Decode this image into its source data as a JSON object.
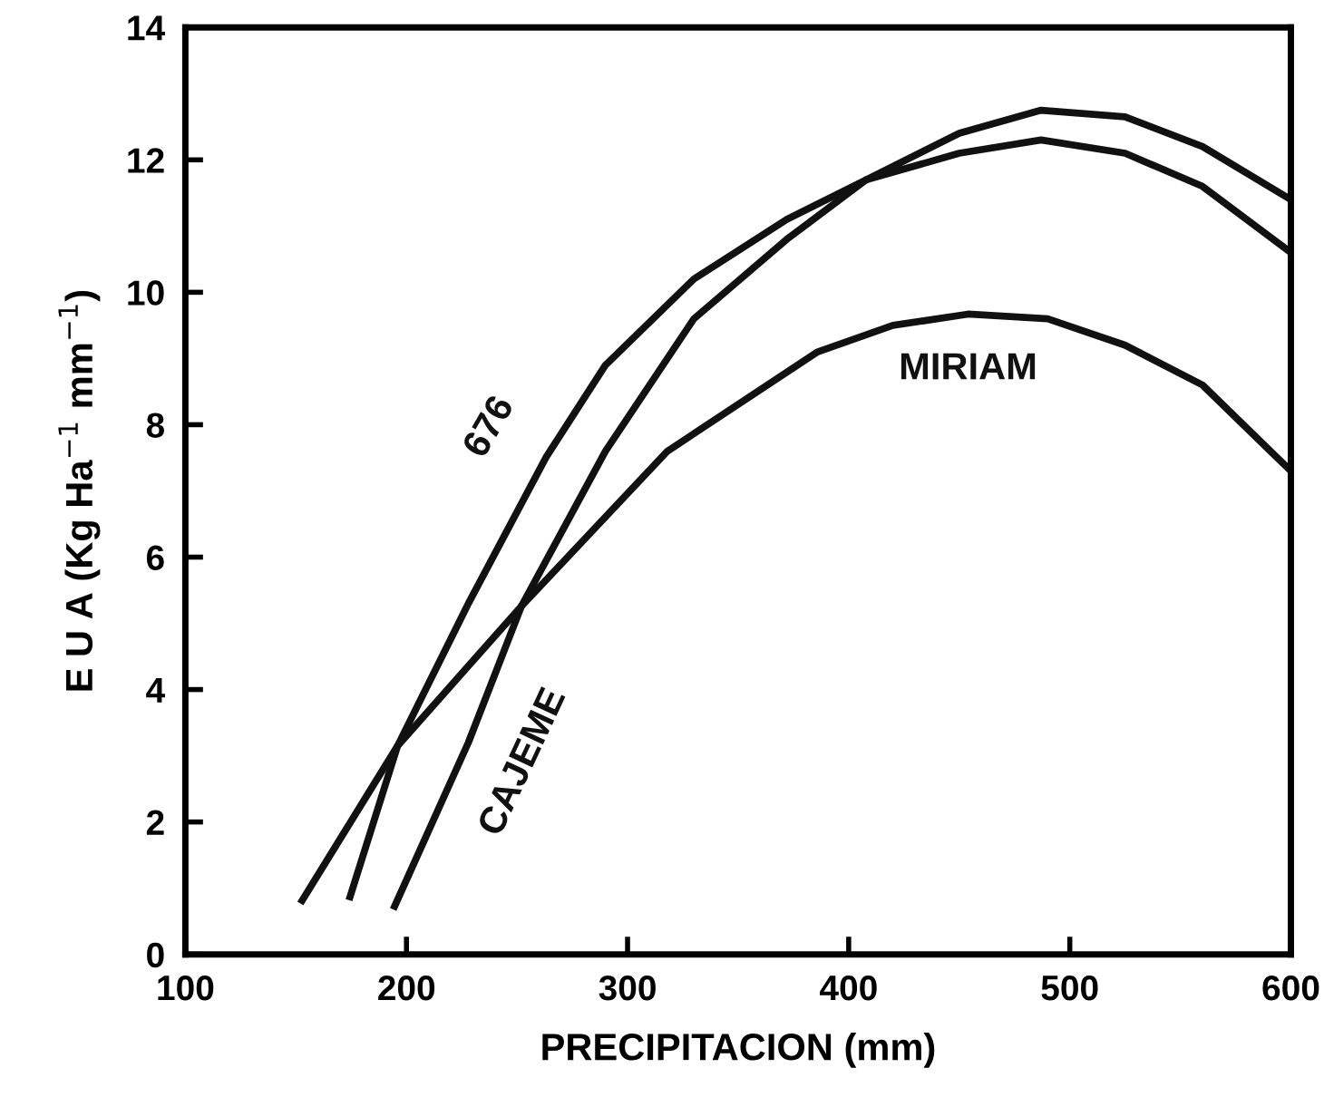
{
  "chart_data": {
    "type": "line",
    "xlabel": "PRECIPITACION (mm)",
    "ylabel": "E U A (Kg Ha$^{−1}$ mm$^{−1}$)",
    "xlim": [
      100,
      600
    ],
    "ylim": [
      0,
      14
    ],
    "xticks": [
      100,
      200,
      300,
      400,
      500,
      600
    ],
    "yticks": [
      0,
      2,
      4,
      6,
      8,
      10,
      12,
      14
    ],
    "grid": false,
    "legend": false,
    "marker": "none",
    "line_style": "solid",
    "series": [
      {
        "name": "676",
        "color": "#111111",
        "x": [
          174,
          196,
          228,
          263,
          290,
          330,
          372,
          408,
          450,
          487,
          525,
          560,
          600
        ],
        "values": [
          0.82,
          3.15,
          5.3,
          7.5,
          8.9,
          10.2,
          11.1,
          11.7,
          12.1,
          12.3,
          12.1,
          11.6,
          10.6
        ]
      },
      {
        "name": "CAJEME",
        "color": "#111111",
        "x": [
          194,
          228,
          252,
          290,
          330,
          372,
          408,
          450,
          487,
          525,
          560,
          600
        ],
        "values": [
          0.68,
          3.2,
          5.26,
          7.6,
          9.6,
          10.8,
          11.7,
          12.4,
          12.75,
          12.65,
          12.2,
          11.4
        ]
      },
      {
        "name": "MIRIAM",
        "color": "#111111",
        "x": [
          152,
          196,
          252,
          318,
          386,
          420,
          454,
          490,
          525,
          560,
          600
        ],
        "values": [
          0.77,
          3.15,
          5.26,
          7.6,
          9.1,
          9.5,
          9.67,
          9.6,
          9.2,
          8.6,
          7.3
        ]
      }
    ]
  }
}
